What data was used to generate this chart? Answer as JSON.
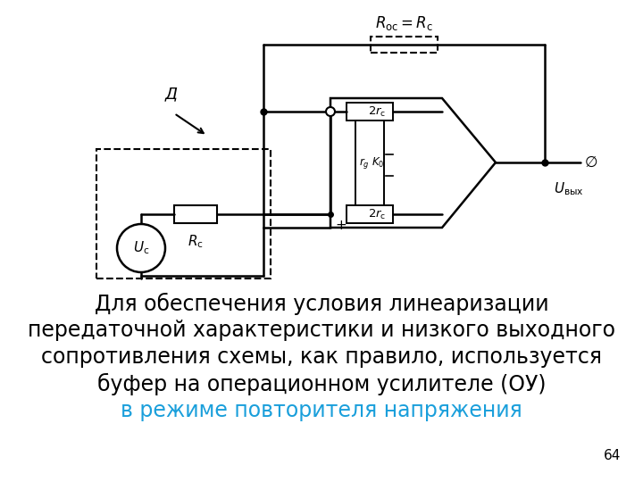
{
  "bg_color": "#ffffff",
  "text_lines": [
    "Для обеспечения условия линеаризации",
    "передаточной характеристики и низкого выходного",
    "сопротивления схемы, как правило, используется",
    "буфер на операционном усилителе (ОУ)"
  ],
  "colored_line": "в режиме повторителя напряжения",
  "colored_line_color": "#1a9fdb",
  "page_number": "64",
  "text_color": "#000000",
  "text_fontsize": 17,
  "colored_fontsize": 17
}
